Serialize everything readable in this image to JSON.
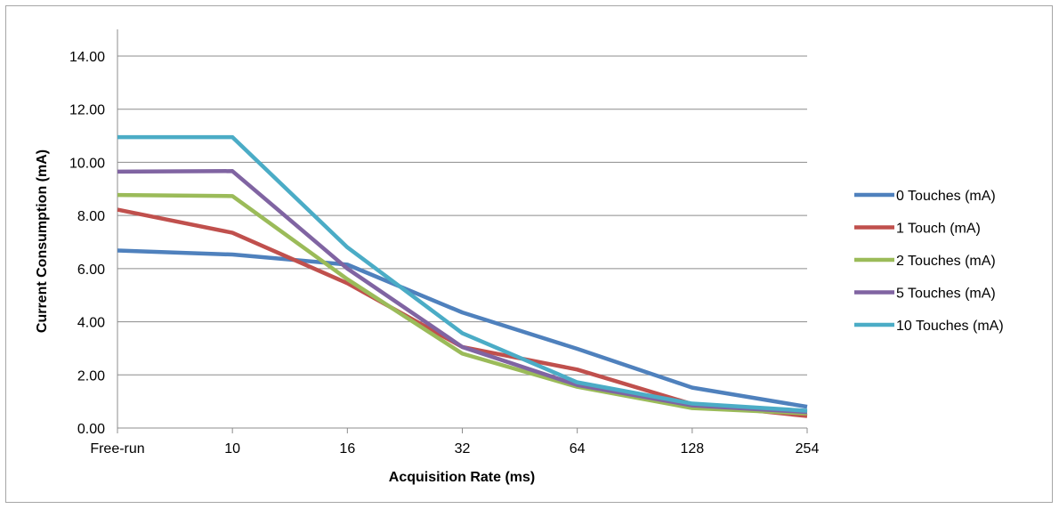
{
  "chart_data": {
    "type": "line",
    "title": "",
    "xlabel": "Acquisition Rate (ms)",
    "ylabel": "Current Consumption (mA)",
    "categories": [
      "Free-run",
      "10",
      "16",
      "32",
      "64",
      "128",
      "254"
    ],
    "ylim": [
      0,
      14
    ],
    "yticks": [
      "0.00",
      "2.00",
      "4.00",
      "6.00",
      "8.00",
      "10.00",
      "12.00",
      "14.00"
    ],
    "grid": true,
    "legend_position": "right",
    "series": [
      {
        "name": "0 Touches (mA)",
        "color": "#4f81bd",
        "values": [
          6.68,
          6.53,
          6.15,
          4.35,
          2.98,
          1.52,
          0.8
        ]
      },
      {
        "name": "1 Touch (mA)",
        "color": "#c0504d",
        "values": [
          8.22,
          7.35,
          5.45,
          3.05,
          2.2,
          0.9,
          0.45
        ]
      },
      {
        "name": "2 Touches (mA)",
        "color": "#9bbb59",
        "values": [
          8.77,
          8.73,
          5.6,
          2.8,
          1.55,
          0.75,
          0.55
        ]
      },
      {
        "name": "5 Touches (mA)",
        "color": "#8064a2",
        "values": [
          9.65,
          9.67,
          6.0,
          3.05,
          1.62,
          0.85,
          0.6
        ]
      },
      {
        "name": "10 Touches (mA)",
        "color": "#4bacc6",
        "values": [
          10.95,
          10.95,
          6.8,
          3.57,
          1.72,
          0.92,
          0.65
        ]
      }
    ]
  }
}
